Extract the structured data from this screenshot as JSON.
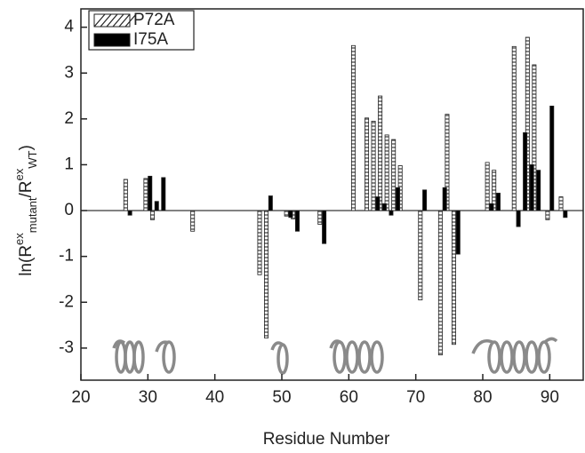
{
  "chart_data": {
    "type": "bar",
    "x_label": "Residue Number",
    "y_label_parts": [
      "ln(R",
      "ex",
      "mutant",
      "/R",
      "ex",
      "WT",
      ")"
    ],
    "x": [
      27,
      30,
      31,
      32,
      37,
      47,
      48,
      51,
      52,
      56,
      61,
      63,
      64,
      65,
      66,
      67,
      68,
      71,
      74,
      75,
      76,
      81,
      82,
      85,
      86,
      87,
      88,
      90,
      92
    ],
    "series": [
      {
        "name": "P72A",
        "color": "#c8c8c8",
        "hatched": true,
        "values": [
          0.68,
          0.7,
          -0.2,
          null,
          -0.45,
          -1.4,
          -2.78,
          -0.12,
          -0.18,
          -0.3,
          3.6,
          2.02,
          1.95,
          2.5,
          1.65,
          1.55,
          0.98,
          -1.95,
          -3.15,
          2.1,
          -2.92,
          1.05,
          0.88,
          3.58,
          null,
          3.78,
          3.18,
          -0.2,
          0.3
        ]
      },
      {
        "name": "I75A",
        "color": "#000000",
        "hatched": false,
        "values": [
          -0.1,
          0.75,
          0.2,
          0.72,
          null,
          null,
          0.32,
          -0.15,
          -0.45,
          -0.72,
          null,
          null,
          0.3,
          0.15,
          -0.1,
          0.5,
          0.0,
          0.45,
          0.5,
          null,
          -0.95,
          0.15,
          0.38,
          -0.35,
          1.7,
          1.0,
          0.88,
          2.28,
          -0.15
        ]
      }
    ],
    "xlim": [
      20,
      95
    ],
    "ylim": [
      -3.7,
      4.4
    ],
    "xticks": [
      20,
      30,
      40,
      50,
      60,
      70,
      80,
      90
    ],
    "yticks": [
      -3,
      -2,
      -1,
      0,
      1,
      2,
      3,
      4
    ],
    "legend": "upper left"
  }
}
